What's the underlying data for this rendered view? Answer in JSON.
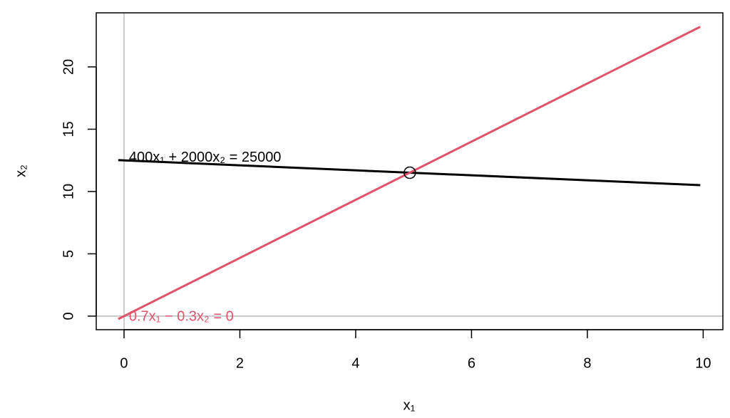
{
  "chart_data": {
    "type": "line",
    "xlabel": "x₁",
    "ylabel": "x₂",
    "x": [
      -0.1,
      9.95
    ],
    "series": [
      {
        "label": "400x₁ + 2000x₂ = 25000",
        "color": "#000000",
        "values": [
          12.52,
          10.51
        ]
      },
      {
        "label": "0.7x₁ − 0.3x₂ = 0",
        "color": "#df536b",
        "values": [
          -0.233,
          23.22
        ]
      }
    ],
    "points": [
      {
        "x": 4.934,
        "y": 11.51
      }
    ],
    "hline": 0,
    "vline": 0,
    "xlim": [
      -0.48,
      10.34
    ],
    "ylim": [
      -1.09,
      24.34
    ],
    "xticks": [
      0,
      2,
      4,
      6,
      8,
      10
    ],
    "yticks": [
      0,
      5,
      10,
      15,
      20
    ]
  }
}
